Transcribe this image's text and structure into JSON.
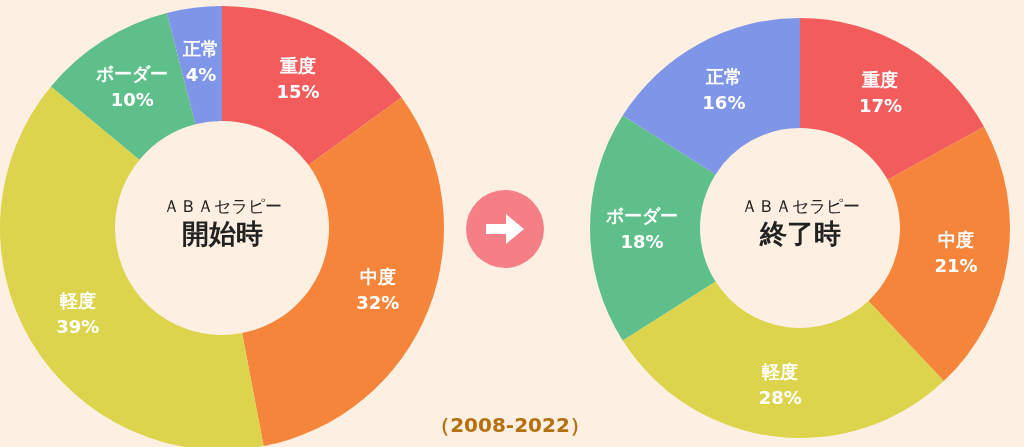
{
  "chart_data": [
    {
      "type": "donut",
      "title": "ＡＢＡセラピー",
      "subtitle": "開始時",
      "categories": [
        "重度",
        "中度",
        "軽度",
        "ボーダー",
        "正常"
      ],
      "values": [
        15,
        32,
        39,
        10,
        4
      ],
      "value_labels": [
        "15%",
        "32%",
        "39%",
        "10%",
        "4%"
      ],
      "colors": [
        "#f25c5c",
        "#f5853a",
        "#dcd44c",
        "#5fbf8a",
        "#7f95e8"
      ],
      "annotations": [
        "（2008-2022）"
      ]
    },
    {
      "type": "donut",
      "title": "ＡＢＡセラピー",
      "subtitle": "終了時",
      "categories": [
        "重度",
        "中度",
        "軽度",
        "ボーダー",
        "正常"
      ],
      "values": [
        17,
        21,
        28,
        18,
        16
      ],
      "value_labels": [
        "17%",
        "21%",
        "28%",
        "18%",
        "16%"
      ],
      "colors": [
        "#f25c5c",
        "#f5853a",
        "#dcd44c",
        "#5fbf8a",
        "#7f95e8"
      ]
    }
  ]
}
